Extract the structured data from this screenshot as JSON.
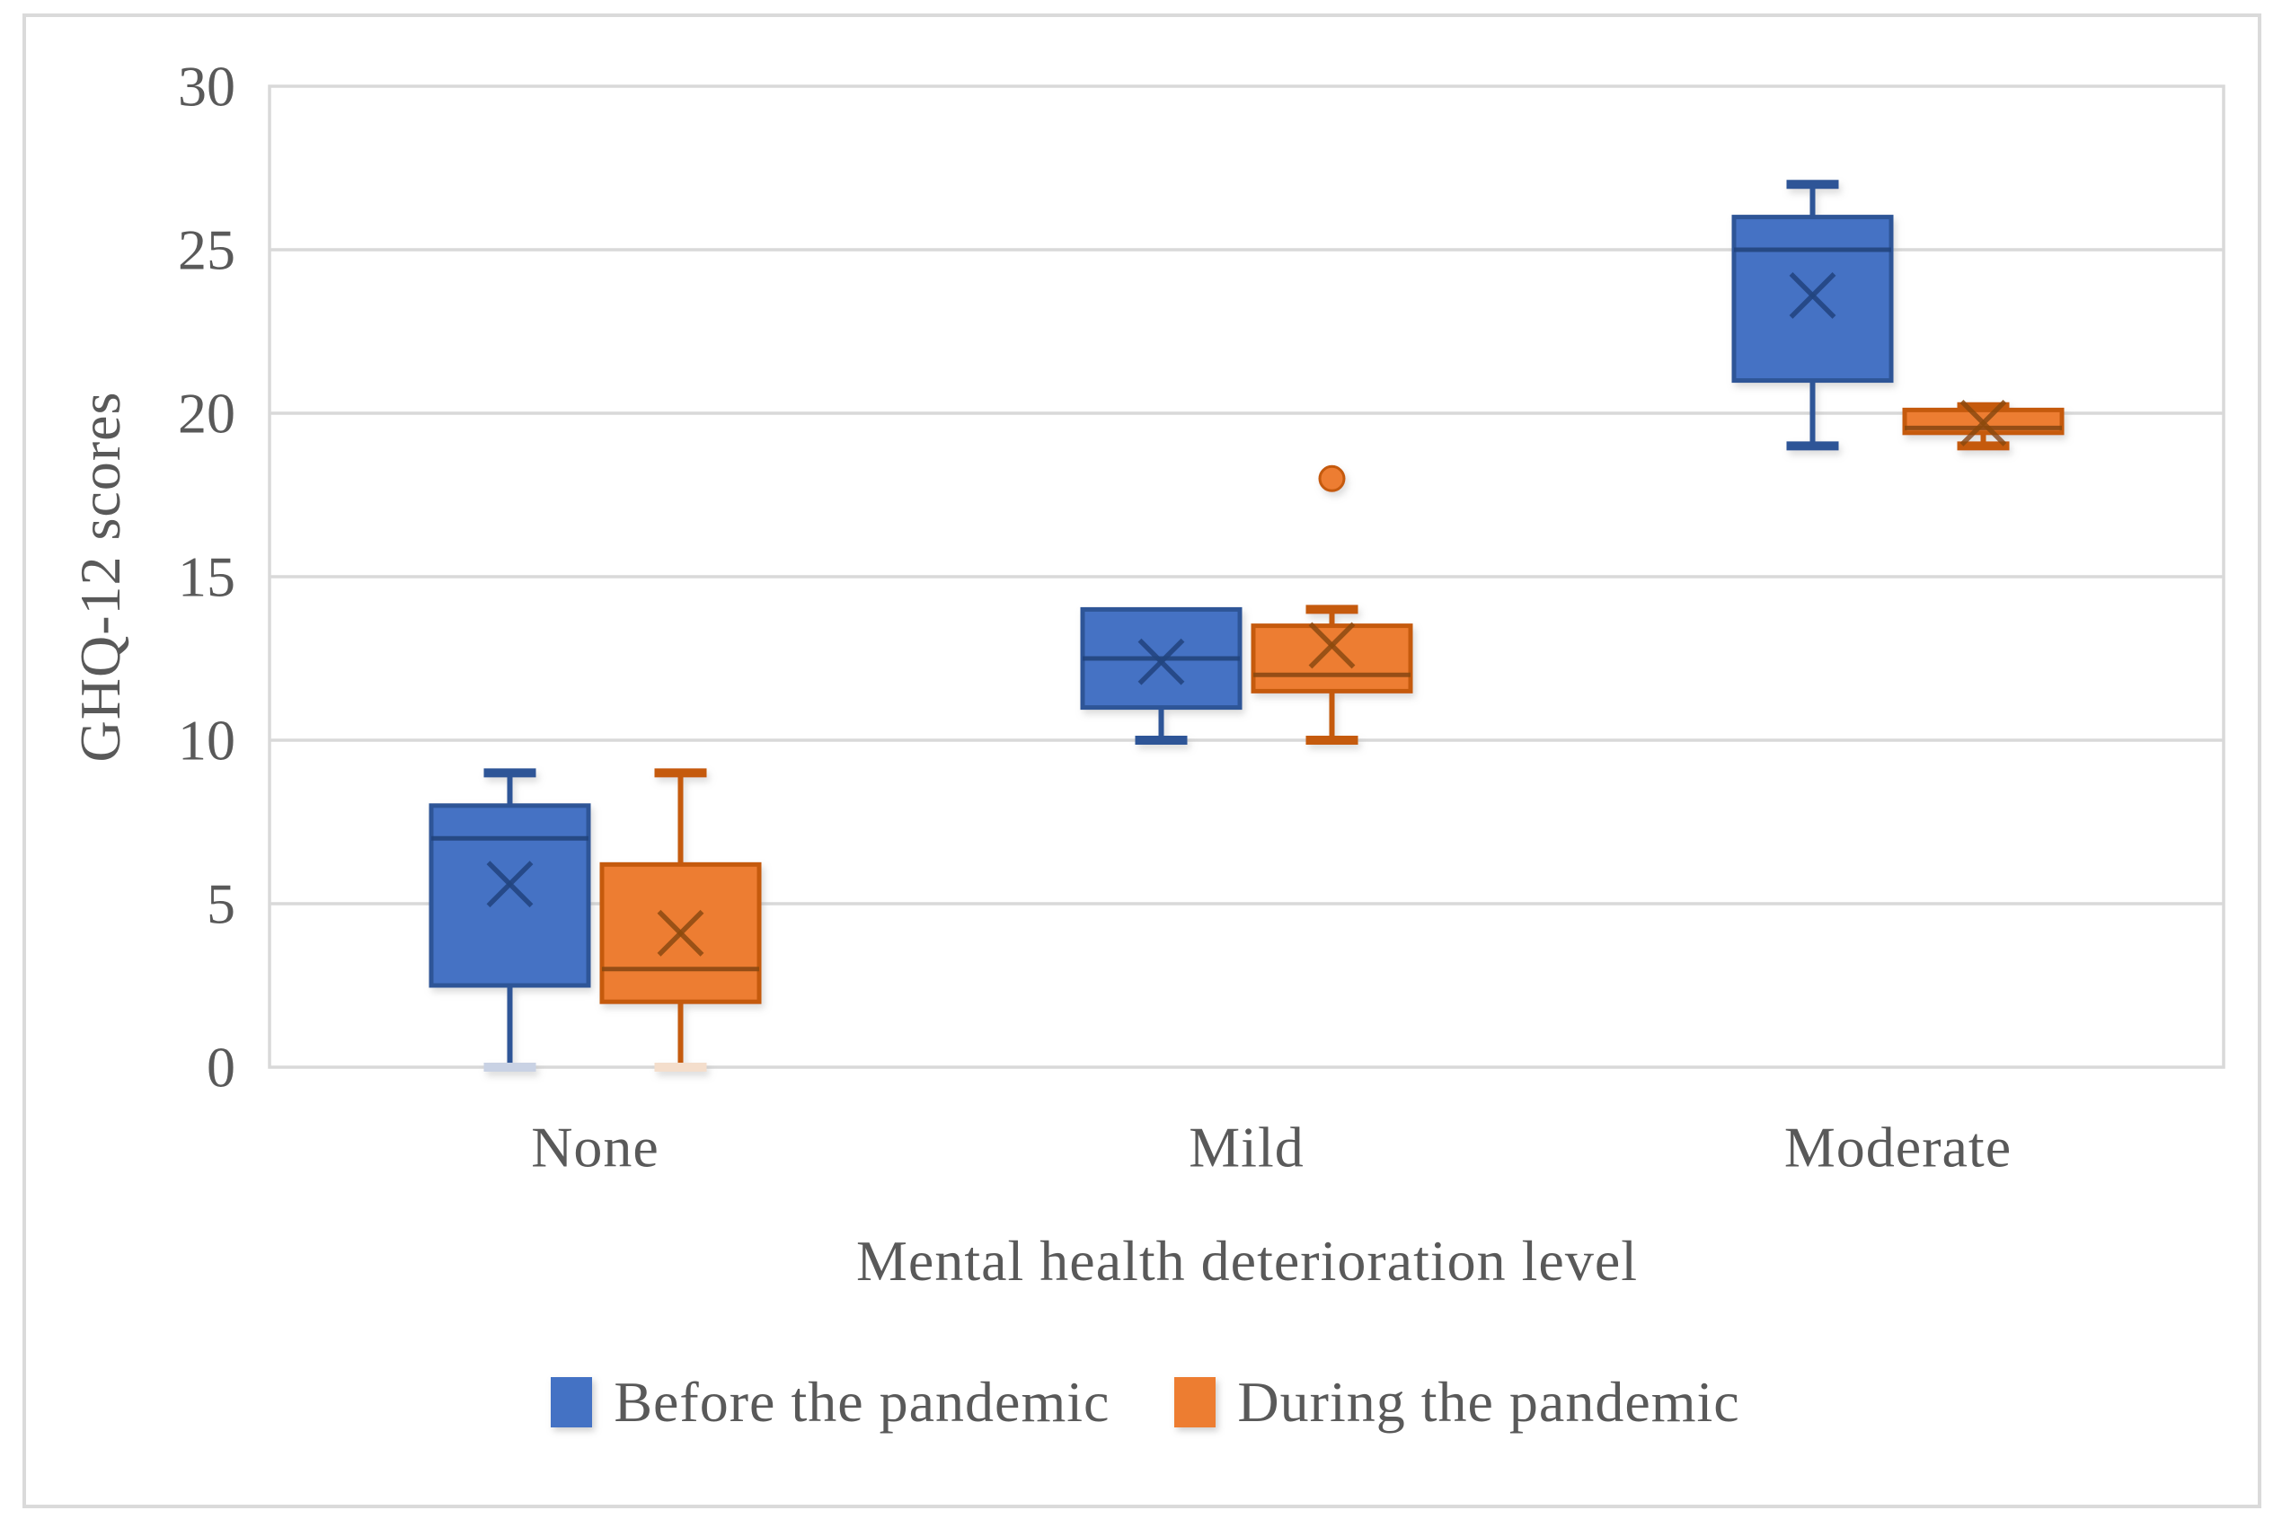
{
  "colors": {
    "background": "#FFFFFF",
    "figure_border": "#DADADA",
    "gridline": "#D9D9D9",
    "text": "#595959"
  },
  "chart_data": {
    "type": "boxplot",
    "title": "",
    "xlabel": "Mental health deterioration level",
    "ylabel": "GHQ-12 scores",
    "categories": [
      "None",
      "Mild",
      "Moderate"
    ],
    "ylim": [
      0,
      30
    ],
    "yticks": [
      0,
      5,
      10,
      15,
      20,
      25,
      30
    ],
    "grid": true,
    "legend_position": "bottom",
    "series": [
      {
        "name": "Before the pandemic",
        "key": "before",
        "fill": "#4472C4",
        "border": "#2E5597",
        "detail": "#24447E",
        "cap_zero_tint": "#C9D2E4",
        "boxes": [
          {
            "category": "None",
            "min": 0,
            "q1": 2.5,
            "median": 7,
            "q3": 8,
            "max": 9,
            "mean": 5.6,
            "outliers": []
          },
          {
            "category": "Mild",
            "min": 10,
            "q1": 11,
            "median": 12.5,
            "q3": 14,
            "max": 14,
            "mean": 12.4,
            "outliers": []
          },
          {
            "category": "Moderate",
            "min": 19,
            "q1": 21,
            "median": 25,
            "q3": 26,
            "max": 27,
            "mean": 23.6,
            "outliers": []
          }
        ]
      },
      {
        "name": "During the pandemic",
        "key": "during",
        "fill": "#ED7D31",
        "border": "#C55A11",
        "detail": "#8C4A10",
        "cap_zero_tint": "#F4DECC",
        "boxes": [
          {
            "category": "None",
            "min": 0,
            "q1": 2,
            "median": 3,
            "q3": 6.2,
            "max": 9,
            "mean": 4.1,
            "outliers": []
          },
          {
            "category": "Mild",
            "min": 10,
            "q1": 11.5,
            "median": 12,
            "q3": 13.5,
            "max": 14,
            "mean": 12.9,
            "outliers": [
              18
            ]
          },
          {
            "category": "Moderate",
            "min": 19,
            "q1": 19.4,
            "median": 19.55,
            "q3": 20.1,
            "max": 20.2,
            "mean": 19.7,
            "outliers": []
          }
        ]
      }
    ]
  }
}
